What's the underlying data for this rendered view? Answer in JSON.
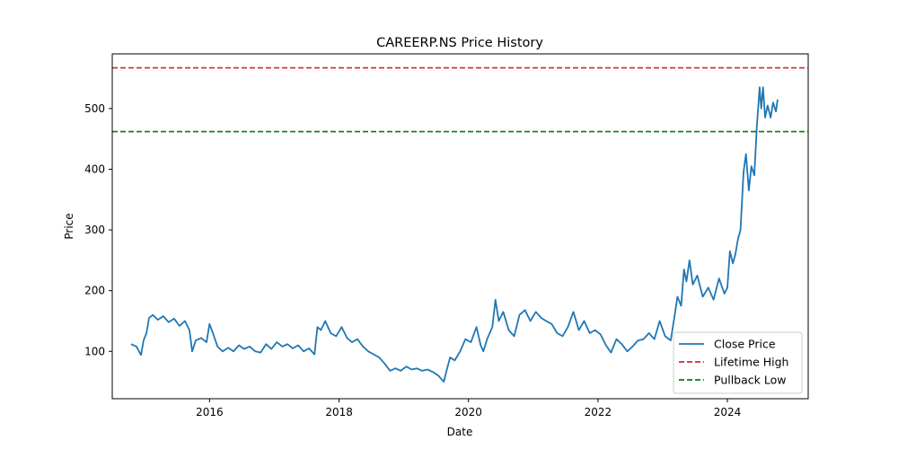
{
  "chart_data": {
    "type": "line",
    "title": "CAREERP.NS Price History",
    "xlabel": "Date",
    "ylabel": "Price",
    "xlim": [
      "2014-07-01",
      "2025-04-01"
    ],
    "ylim": [
      22,
      590
    ],
    "x_ticks": [
      {
        "date": "2016-01-01",
        "label": "2016"
      },
      {
        "date": "2018-01-01",
        "label": "2018"
      },
      {
        "date": "2020-01-01",
        "label": "2020"
      },
      {
        "date": "2022-01-01",
        "label": "2022"
      },
      {
        "date": "2024-01-01",
        "label": "2024"
      }
    ],
    "y_ticks": [
      100,
      200,
      300,
      400,
      500
    ],
    "grid": false,
    "legend_position": "lower-right",
    "series": [
      {
        "name": "Close Price",
        "color": "#1f77b4",
        "style": "solid",
        "points": [
          [
            "2014-10-15",
            112
          ],
          [
            "2014-11-15",
            108
          ],
          [
            "2014-12-10",
            94
          ],
          [
            "2014-12-25",
            118
          ],
          [
            "2015-01-10",
            130
          ],
          [
            "2015-01-25",
            155
          ],
          [
            "2015-02-15",
            160
          ],
          [
            "2015-03-15",
            152
          ],
          [
            "2015-04-15",
            158
          ],
          [
            "2015-05-15",
            148
          ],
          [
            "2015-06-15",
            154
          ],
          [
            "2015-07-15",
            142
          ],
          [
            "2015-08-15",
            150
          ],
          [
            "2015-09-10",
            135
          ],
          [
            "2015-09-25",
            100
          ],
          [
            "2015-10-15",
            118
          ],
          [
            "2015-11-15",
            122
          ],
          [
            "2015-12-15",
            115
          ],
          [
            "2016-01-01",
            145
          ],
          [
            "2016-01-20",
            130
          ],
          [
            "2016-02-15",
            108
          ],
          [
            "2016-03-15",
            100
          ],
          [
            "2016-04-15",
            106
          ],
          [
            "2016-05-15",
            100
          ],
          [
            "2016-06-15",
            110
          ],
          [
            "2016-07-15",
            104
          ],
          [
            "2016-08-15",
            108
          ],
          [
            "2016-09-15",
            100
          ],
          [
            "2016-10-15",
            98
          ],
          [
            "2016-11-15",
            112
          ],
          [
            "2016-12-15",
            104
          ],
          [
            "2017-01-15",
            115
          ],
          [
            "2017-02-15",
            108
          ],
          [
            "2017-03-15",
            112
          ],
          [
            "2017-04-15",
            105
          ],
          [
            "2017-05-15",
            110
          ],
          [
            "2017-06-15",
            100
          ],
          [
            "2017-07-15",
            105
          ],
          [
            "2017-08-15",
            95
          ],
          [
            "2017-09-01",
            140
          ],
          [
            "2017-09-20",
            135
          ],
          [
            "2017-10-15",
            150
          ],
          [
            "2017-11-15",
            130
          ],
          [
            "2017-12-15",
            125
          ],
          [
            "2018-01-15",
            140
          ],
          [
            "2018-02-15",
            122
          ],
          [
            "2018-03-15",
            115
          ],
          [
            "2018-04-15",
            120
          ],
          [
            "2018-05-15",
            108
          ],
          [
            "2018-06-15",
            100
          ],
          [
            "2018-07-15",
            95
          ],
          [
            "2018-08-15",
            90
          ],
          [
            "2018-09-15",
            80
          ],
          [
            "2018-10-15",
            68
          ],
          [
            "2018-11-15",
            72
          ],
          [
            "2018-12-15",
            68
          ],
          [
            "2019-01-15",
            75
          ],
          [
            "2019-02-15",
            70
          ],
          [
            "2019-03-15",
            72
          ],
          [
            "2019-04-15",
            68
          ],
          [
            "2019-05-15",
            70
          ],
          [
            "2019-06-15",
            66
          ],
          [
            "2019-07-15",
            60
          ],
          [
            "2019-08-15",
            50
          ],
          [
            "2019-09-01",
            70
          ],
          [
            "2019-09-20",
            90
          ],
          [
            "2019-10-15",
            85
          ],
          [
            "2019-11-15",
            100
          ],
          [
            "2019-12-15",
            120
          ],
          [
            "2020-01-15",
            115
          ],
          [
            "2020-02-15",
            140
          ],
          [
            "2020-03-10",
            110
          ],
          [
            "2020-03-25",
            100
          ],
          [
            "2020-04-15",
            120
          ],
          [
            "2020-05-15",
            140
          ],
          [
            "2020-06-01",
            185
          ],
          [
            "2020-06-20",
            150
          ],
          [
            "2020-07-15",
            165
          ],
          [
            "2020-08-15",
            135
          ],
          [
            "2020-09-15",
            125
          ],
          [
            "2020-10-15",
            160
          ],
          [
            "2020-11-15",
            168
          ],
          [
            "2020-12-15",
            150
          ],
          [
            "2021-01-15",
            165
          ],
          [
            "2021-02-15",
            155
          ],
          [
            "2021-03-15",
            150
          ],
          [
            "2021-04-15",
            145
          ],
          [
            "2021-05-15",
            130
          ],
          [
            "2021-06-15",
            125
          ],
          [
            "2021-07-15",
            140
          ],
          [
            "2021-08-15",
            165
          ],
          [
            "2021-09-15",
            135
          ],
          [
            "2021-10-15",
            150
          ],
          [
            "2021-11-15",
            130
          ],
          [
            "2021-12-15",
            135
          ],
          [
            "2022-01-15",
            128
          ],
          [
            "2022-02-15",
            110
          ],
          [
            "2022-03-15",
            98
          ],
          [
            "2022-04-15",
            120
          ],
          [
            "2022-05-15",
            112
          ],
          [
            "2022-06-15",
            100
          ],
          [
            "2022-07-15",
            108
          ],
          [
            "2022-08-15",
            118
          ],
          [
            "2022-09-15",
            120
          ],
          [
            "2022-10-15",
            130
          ],
          [
            "2022-11-15",
            120
          ],
          [
            "2022-12-15",
            150
          ],
          [
            "2023-01-15",
            125
          ],
          [
            "2023-02-15",
            118
          ],
          [
            "2023-03-10",
            160
          ],
          [
            "2023-03-25",
            190
          ],
          [
            "2023-04-15",
            175
          ],
          [
            "2023-05-01",
            235
          ],
          [
            "2023-05-15",
            215
          ],
          [
            "2023-06-01",
            250
          ],
          [
            "2023-06-20",
            210
          ],
          [
            "2023-07-15",
            225
          ],
          [
            "2023-08-15",
            190
          ],
          [
            "2023-09-15",
            205
          ],
          [
            "2023-10-15",
            185
          ],
          [
            "2023-11-15",
            220
          ],
          [
            "2023-12-15",
            195
          ],
          [
            "2024-01-01",
            205
          ],
          [
            "2024-01-15",
            265
          ],
          [
            "2024-02-01",
            245
          ],
          [
            "2024-02-15",
            260
          ],
          [
            "2024-03-01",
            285
          ],
          [
            "2024-03-15",
            300
          ],
          [
            "2024-04-01",
            395
          ],
          [
            "2024-04-15",
            425
          ],
          [
            "2024-05-01",
            365
          ],
          [
            "2024-05-15",
            405
          ],
          [
            "2024-06-01",
            390
          ],
          [
            "2024-06-15",
            470
          ],
          [
            "2024-07-01",
            535
          ],
          [
            "2024-07-10",
            500
          ],
          [
            "2024-07-20",
            535
          ],
          [
            "2024-08-01",
            485
          ],
          [
            "2024-08-15",
            505
          ],
          [
            "2024-09-01",
            485
          ],
          [
            "2024-09-15",
            510
          ],
          [
            "2024-10-01",
            495
          ],
          [
            "2024-10-10",
            515
          ]
        ]
      },
      {
        "name": "Lifetime High",
        "color": "#d62728",
        "style": "dashed",
        "value": 567
      },
      {
        "name": "Pullback Low",
        "color": "#008000",
        "style": "dashed",
        "value": 462
      }
    ]
  }
}
